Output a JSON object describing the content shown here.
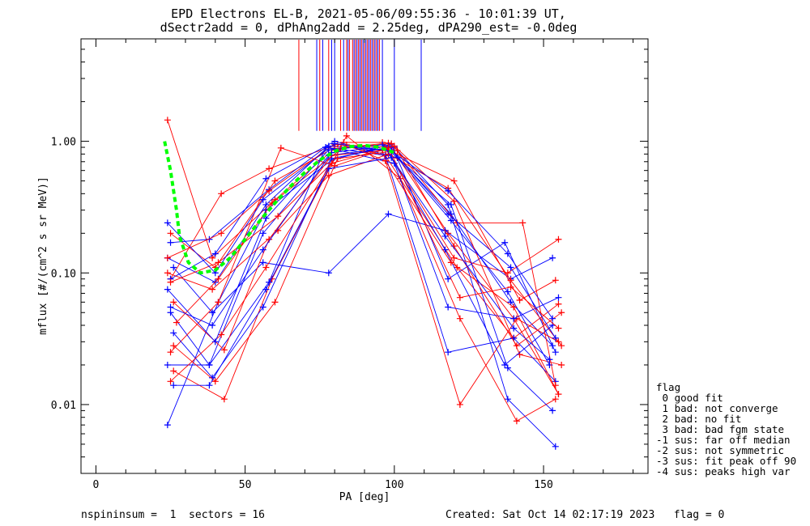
{
  "figure": {
    "title_line1": "EPD Electrons EL-B, 2021-05-06/09:55:36 - 10:01:39 UT,",
    "title_line2": "dSectr2add = 0, dPhAng2add = 2.25deg, dPA290_est=  -0.0deg",
    "footer_left": "nspininsum =  1  sectors = 16",
    "footer_right": "Created: Sat Oct 14 02:17:19 2023   flag = 0"
  },
  "legend": {
    "title": "flag",
    "entries": [
      " 0 good fit",
      " 1 bad: not converge",
      " 2 bad: no fit",
      " 3 bad: bad fgm state",
      "-1 sus: far off median",
      "-2 sus: not symmetric",
      "-3 sus: fit peak off 90",
      "-4 sus: peaks high var"
    ]
  },
  "colors": {
    "red": "#ff0000",
    "blue": "#0000ff",
    "fit": "#00ff00",
    "axis": "#000000"
  },
  "chart_data": {
    "type": "line",
    "xlabel": "PA [deg]",
    "ylabel": "mflux [#/(cm^2 s sr MeV)]",
    "xlim": [
      -5,
      185
    ],
    "ylim": [
      0.003,
      6.0
    ],
    "yscale": "log",
    "xticks": [
      0,
      50,
      100,
      150
    ],
    "xtick_labels": [
      "0",
      "50",
      "100",
      "150"
    ],
    "yticks": [
      0.01,
      0.1,
      1.0
    ],
    "ytick_labels": [
      "0.01",
      "0.10",
      "1.00"
    ],
    "grid": false,
    "legend_position": "right-bottom-outside",
    "fit_curve": {
      "name": "",
      "color": "green-dashed",
      "x": [
        23,
        25,
        27,
        28,
        31,
        35,
        40,
        45,
        50,
        55,
        60,
        65,
        70,
        75,
        80,
        85,
        90,
        95,
        100
      ],
      "y": [
        1.0,
        0.6,
        0.3,
        0.19,
        0.12,
        0.1,
        0.105,
        0.13,
        0.18,
        0.25,
        0.34,
        0.45,
        0.58,
        0.72,
        0.84,
        0.91,
        0.93,
        0.9,
        0.82
      ]
    },
    "pa_tick_marks": {
      "red": [
        68,
        75,
        78,
        82,
        84,
        85,
        86,
        87,
        88,
        89,
        90,
        91,
        92,
        93,
        94,
        95
      ],
      "blue": [
        74,
        76,
        79,
        80,
        83,
        84.5,
        86.5,
        87.5,
        88.5,
        89.5,
        90.5,
        91.5,
        92.5,
        93.5,
        94.5,
        96,
        100,
        109
      ]
    },
    "series": [
      {
        "name": "",
        "color": "red",
        "x": [
          24,
          39,
          60,
          80,
          98,
          118,
          140,
          155
        ],
        "y": [
          1.45,
          0.13,
          0.36,
          0.88,
          0.97,
          0.2,
          0.045,
          0.012
        ]
      },
      {
        "name": "",
        "color": "blue",
        "x": [
          24,
          40,
          57,
          78,
          99,
          119,
          139,
          153
        ],
        "y": [
          0.13,
          0.085,
          0.33,
          0.92,
          0.85,
          0.28,
          0.06,
          0.028
        ]
      },
      {
        "name": "",
        "color": "red",
        "x": [
          25,
          42,
          58,
          81,
          97,
          121,
          140,
          155
        ],
        "y": [
          0.09,
          0.4,
          0.62,
          0.95,
          0.78,
          0.11,
          0.032,
          0.058
        ]
      },
      {
        "name": "",
        "color": "blue",
        "x": [
          25,
          38,
          56,
          78,
          100,
          118,
          138,
          154
        ],
        "y": [
          0.05,
          0.02,
          0.2,
          0.78,
          0.9,
          0.33,
          0.011,
          0.0048
        ]
      },
      {
        "name": "",
        "color": "red",
        "x": [
          26,
          43,
          59,
          84,
          102,
          122,
          141,
          154
        ],
        "y": [
          0.018,
          0.011,
          0.09,
          1.1,
          0.52,
          0.045,
          0.0075,
          0.011
        ]
      },
      {
        "name": "",
        "color": "blue",
        "x": [
          24,
          41,
          57,
          79,
          99,
          118,
          137,
          154
        ],
        "y": [
          0.007,
          0.06,
          0.3,
          0.72,
          0.95,
          0.09,
          0.17,
          0.025
        ]
      },
      {
        "name": "",
        "color": "red",
        "x": [
          25,
          40,
          60,
          83,
          96,
          120,
          138,
          155
        ],
        "y": [
          0.2,
          0.11,
          0.5,
          0.98,
          0.98,
          0.13,
          0.1,
          0.18
        ]
      },
      {
        "name": "",
        "color": "blue",
        "x": [
          26,
          39,
          56,
          78,
          98,
          117,
          139,
          153
        ],
        "y": [
          0.11,
          0.05,
          0.12,
          0.1,
          0.28,
          0.21,
          0.09,
          0.13
        ]
      },
      {
        "name": "",
        "color": "red",
        "x": [
          25,
          41,
          62,
          80,
          100,
          120,
          142,
          156
        ],
        "y": [
          0.025,
          0.06,
          0.89,
          0.65,
          0.92,
          0.35,
          0.024,
          0.02
        ]
      },
      {
        "name": "",
        "color": "blue",
        "x": [
          24,
          38,
          58,
          77,
          97,
          118,
          140,
          154
        ],
        "y": [
          0.02,
          0.02,
          0.085,
          0.9,
          0.78,
          0.025,
          0.032,
          0.015
        ]
      },
      {
        "name": "",
        "color": "red",
        "x": [
          26,
          43,
          58,
          79,
          96,
          122,
          141,
          155
        ],
        "y": [
          0.06,
          0.026,
          0.18,
          0.78,
          0.85,
          0.01,
          0.045,
          0.03
        ]
      },
      {
        "name": "",
        "color": "blue",
        "x": [
          25,
          40,
          57,
          80,
          101,
          119,
          138,
          152
        ],
        "y": [
          0.09,
          0.14,
          0.52,
          1.0,
          0.75,
          0.25,
          0.072,
          0.02
        ]
      },
      {
        "name": "",
        "color": "red",
        "x": [
          24,
          39,
          61,
          78,
          98,
          118,
          139,
          156
        ],
        "y": [
          0.1,
          0.075,
          0.21,
          0.55,
          0.8,
          0.44,
          0.088,
          0.028
        ]
      },
      {
        "name": "",
        "color": "blue",
        "x": [
          26,
          39,
          56,
          79,
          97,
          117,
          137,
          153
        ],
        "y": [
          0.035,
          0.016,
          0.055,
          0.74,
          0.89,
          0.15,
          0.02,
          0.04
        ]
      },
      {
        "name": "",
        "color": "red",
        "x": [
          25,
          42,
          57,
          82,
          99,
          121,
          143,
          154
        ],
        "y": [
          0.015,
          0.034,
          0.11,
          0.88,
          0.96,
          0.24,
          0.24,
          0.014
        ]
      },
      {
        "name": "",
        "color": "blue",
        "x": [
          25,
          38,
          58,
          77,
          100,
          118,
          140,
          155
        ],
        "y": [
          0.17,
          0.18,
          0.43,
          0.9,
          0.68,
          0.055,
          0.045,
          0.065
        ]
      },
      {
        "name": "",
        "color": "red",
        "x": [
          27,
          41,
          59,
          84,
          97,
          119,
          140,
          155
        ],
        "y": [
          0.042,
          0.09,
          0.34,
          0.94,
          0.71,
          0.12,
          0.055,
          0.012
        ]
      },
      {
        "name": "",
        "color": "blue",
        "x": [
          24,
          40,
          57,
          78,
          96,
          119,
          138,
          153
        ],
        "y": [
          0.075,
          0.03,
          0.26,
          0.86,
          0.94,
          0.33,
          0.019,
          0.009
        ]
      },
      {
        "name": "",
        "color": "red",
        "x": [
          26,
          40,
          60,
          81,
          101,
          120,
          141,
          156
        ],
        "y": [
          0.028,
          0.015,
          0.06,
          0.74,
          0.85,
          0.16,
          0.028,
          0.05
        ]
      },
      {
        "name": "",
        "color": "blue",
        "x": [
          25,
          39,
          56,
          79,
          98,
          118,
          139,
          154
        ],
        "y": [
          0.055,
          0.04,
          0.15,
          0.82,
          0.92,
          0.28,
          0.11,
          0.032
        ]
      },
      {
        "name": "",
        "color": "red",
        "x": [
          24,
          42,
          58,
          80,
          98,
          122,
          139,
          155
        ],
        "y": [
          0.13,
          0.2,
          0.42,
          0.95,
          0.9,
          0.065,
          0.078,
          0.038
        ]
      },
      {
        "name": "",
        "color": "blue",
        "x": [
          26,
          38,
          57,
          78,
          99,
          117,
          140,
          152
        ],
        "y": [
          0.014,
          0.014,
          0.075,
          0.62,
          0.75,
          0.19,
          0.038,
          0.022
        ]
      },
      {
        "name": "",
        "color": "red",
        "x": [
          25,
          41,
          61,
          79,
          97,
          120,
          142,
          154
        ],
        "y": [
          0.085,
          0.12,
          0.27,
          0.68,
          0.88,
          0.5,
          0.062,
          0.088
        ]
      },
      {
        "name": "",
        "color": "blue",
        "x": [
          24,
          40,
          56,
          80,
          99,
          118,
          138,
          153
        ],
        "y": [
          0.24,
          0.1,
          0.36,
          0.96,
          0.84,
          0.42,
          0.14,
          0.045
        ]
      }
    ]
  }
}
